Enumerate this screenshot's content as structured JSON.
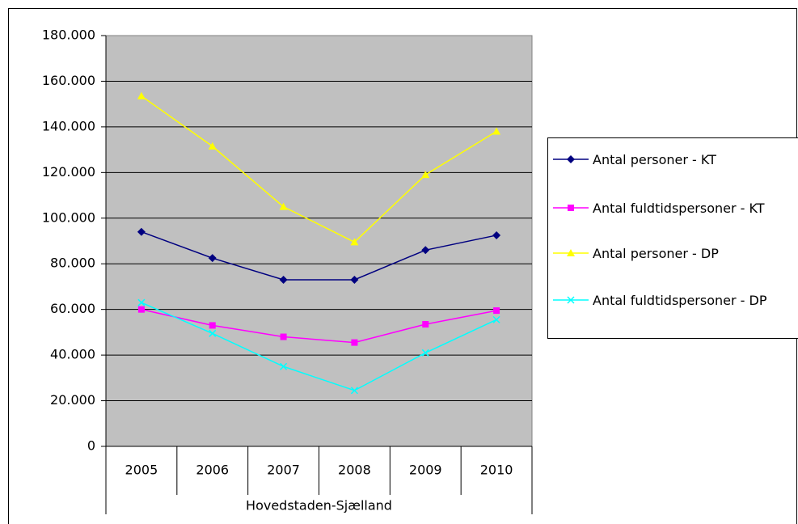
{
  "chart_data": {
    "type": "line",
    "categories": [
      "2005",
      "2006",
      "2007",
      "2008",
      "2009",
      "2010"
    ],
    "category_group": "Hovedstaden-Sjælland",
    "series": [
      {
        "name": "Antal personer - KT",
        "color": "#000080",
        "marker": "diamond",
        "values": [
          94000,
          82500,
          73000,
          73000,
          86000,
          92500
        ]
      },
      {
        "name": "Antal fuldtidspersoner - KT",
        "color": "#FF00FF",
        "marker": "square",
        "values": [
          60000,
          53000,
          48000,
          45500,
          53500,
          59500
        ]
      },
      {
        "name": "Antal personer - DP",
        "color": "#FFFF00",
        "marker": "triangle",
        "values": [
          153500,
          131500,
          105000,
          89500,
          119000,
          138000
        ]
      },
      {
        "name": "Antal fuldtidspersoner - DP",
        "color": "#00FFFF",
        "marker": "x",
        "values": [
          63000,
          49500,
          35000,
          24500,
          41000,
          55500
        ]
      }
    ],
    "ylim": [
      0,
      180000
    ],
    "yticks": [
      0,
      {
        "value": 20000,
        "label": "20.000"
      },
      {
        "value": 40000,
        "label": "40.000"
      },
      {
        "value": 60000,
        "label": "60.000"
      },
      {
        "value": 80000,
        "label": "80.000"
      },
      {
        "value": 100000,
        "label": "100.000"
      },
      {
        "value": 120000,
        "label": "120.000"
      },
      {
        "value": 140000,
        "label": "140.000"
      },
      {
        "value": 160000,
        "label": "160.000"
      },
      {
        "value": 180000,
        "label": "180.000"
      }
    ],
    "grid": true,
    "legend": "right"
  }
}
